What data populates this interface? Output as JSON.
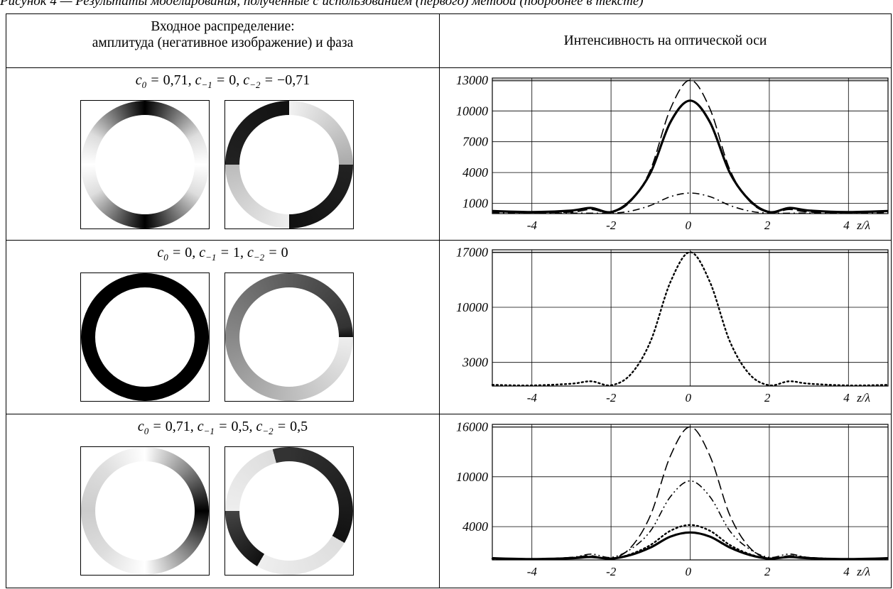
{
  "caption_fragment": "Рисунок 4 — Результаты моделирования, полученные с использованием (первого) метода (подробнее в тексте)",
  "table": {
    "header_left": [
      "Входное распределение:",
      "амплитуда (негативное изображение) и фаза"
    ],
    "header_right": "Интенсивность на оптической оси",
    "rows": [
      {
        "condition": {
          "c0": "0,71",
          "cm1": "0",
          "cm2": "−0,71"
        },
        "amplitude_icon": "amplitude-ring-icon",
        "phase_icon": "phase-ring-icon"
      },
      {
        "condition": {
          "c0": "0",
          "cm1": "1",
          "cm2": "0"
        },
        "amplitude_icon": "amplitude-ring-icon",
        "phase_icon": "phase-ring-icon"
      },
      {
        "condition": {
          "c0": "0,71",
          "cm1": "0,5",
          "cm2": "0,5"
        },
        "amplitude_icon": "amplitude-ring-icon",
        "phase_icon": "phase-ring-icon"
      }
    ]
  },
  "chart_data": [
    {
      "type": "line",
      "xlabel": "z/λ",
      "x_ticks": [
        "-4",
        "-2",
        "0",
        "2",
        "4"
      ],
      "y_ticks": [
        "13000",
        "10000",
        "7000",
        "4000",
        "1000"
      ],
      "y_tick_values": [
        13000,
        10000,
        7000,
        4000,
        1000
      ],
      "xlim": [
        -5,
        5
      ],
      "ylim": [
        0,
        13200
      ],
      "grid": true,
      "series": [
        {
          "style": "dashed",
          "x": [
            -5,
            -4,
            -3,
            -2.5,
            -2,
            -1.5,
            -1,
            -0.5,
            0,
            0.5,
            1,
            1.5,
            2,
            2.5,
            3,
            4,
            5
          ],
          "values": [
            200,
            100,
            150,
            400,
            100,
            1200,
            4300,
            10200,
            13000,
            10200,
            4300,
            1200,
            100,
            400,
            150,
            100,
            200
          ]
        },
        {
          "style": "solid",
          "x": [
            -5,
            -4,
            -3,
            -2.5,
            -2,
            -1.5,
            -1,
            -0.5,
            0,
            0.5,
            1,
            1.5,
            2,
            2.5,
            3,
            4,
            5
          ],
          "values": [
            250,
            150,
            300,
            550,
            150,
            1300,
            4000,
            8900,
            11000,
            8900,
            4000,
            1300,
            150,
            550,
            300,
            150,
            250
          ]
        },
        {
          "style": "dash-dot",
          "x": [
            -5,
            -4,
            -3,
            -2,
            -1.5,
            -1,
            -0.5,
            0,
            0.5,
            1,
            1.5,
            2,
            3,
            4,
            5
          ],
          "values": [
            100,
            50,
            50,
            50,
            250,
            800,
            1650,
            2000,
            1650,
            800,
            250,
            50,
            50,
            50,
            100
          ]
        }
      ]
    },
    {
      "type": "line",
      "xlabel": "z/λ",
      "x_ticks": [
        "-4",
        "-2",
        "0",
        "2",
        "4"
      ],
      "y_ticks": [
        "17000",
        "10000",
        "3000"
      ],
      "y_tick_values": [
        17000,
        10000,
        3000
      ],
      "xlim": [
        -5,
        5
      ],
      "ylim": [
        0,
        17300
      ],
      "grid": true,
      "series": [
        {
          "style": "dotted",
          "x": [
            -5,
            -4,
            -3,
            -2.5,
            -2,
            -1.5,
            -1,
            -0.5,
            0,
            0.5,
            1,
            1.5,
            2,
            2.5,
            3,
            4,
            5
          ],
          "values": [
            150,
            80,
            300,
            600,
            100,
            1500,
            5700,
            13200,
            17000,
            13200,
            5700,
            1500,
            100,
            600,
            300,
            80,
            150
          ]
        }
      ]
    },
    {
      "type": "line",
      "xlabel": "z/λ",
      "x_ticks": [
        "-4",
        "-2",
        "0",
        "2",
        "4"
      ],
      "y_ticks": [
        "16000",
        "10000",
        "4000"
      ],
      "y_tick_values": [
        16000,
        10000,
        4000
      ],
      "xlim": [
        -5,
        5
      ],
      "ylim": [
        0,
        16300
      ],
      "grid": true,
      "series": [
        {
          "style": "dashed",
          "x": [
            -5,
            -4,
            -3,
            -2.5,
            -2,
            -1.5,
            -1,
            -0.5,
            0,
            0.5,
            1,
            1.5,
            2,
            2.5,
            3,
            4,
            5
          ],
          "values": [
            250,
            100,
            300,
            500,
            150,
            1500,
            5400,
            12500,
            16000,
            12500,
            5400,
            1500,
            150,
            500,
            300,
            100,
            250
          ]
        },
        {
          "style": "dash-dot-dot",
          "x": [
            -5,
            -4,
            -3,
            -2.5,
            -2,
            -1.5,
            -1,
            -0.5,
            0,
            0.5,
            1,
            1.5,
            2,
            2.5,
            3,
            4,
            5
          ],
          "values": [
            200,
            100,
            300,
            700,
            300,
            1300,
            3500,
            7600,
            9500,
            7600,
            3500,
            1300,
            300,
            700,
            300,
            100,
            200
          ]
        },
        {
          "style": "dotted",
          "x": [
            -5,
            -4,
            -3,
            -2.5,
            -2,
            -1.5,
            -1,
            -0.5,
            0,
            0.5,
            1,
            1.5,
            2,
            2.5,
            3,
            4,
            5
          ],
          "values": [
            150,
            80,
            250,
            400,
            150,
            700,
            1800,
            3500,
            4200,
            3500,
            1800,
            700,
            150,
            400,
            250,
            80,
            150
          ]
        },
        {
          "style": "solid",
          "x": [
            -5,
            -4,
            -3,
            -2.5,
            -2,
            -1.5,
            -1,
            -0.5,
            0,
            0.5,
            1,
            1.5,
            2,
            2.5,
            3,
            4,
            5
          ],
          "values": [
            200,
            100,
            200,
            350,
            150,
            600,
            1500,
            2800,
            3300,
            2800,
            1500,
            600,
            150,
            350,
            200,
            100,
            200
          ]
        }
      ]
    }
  ]
}
